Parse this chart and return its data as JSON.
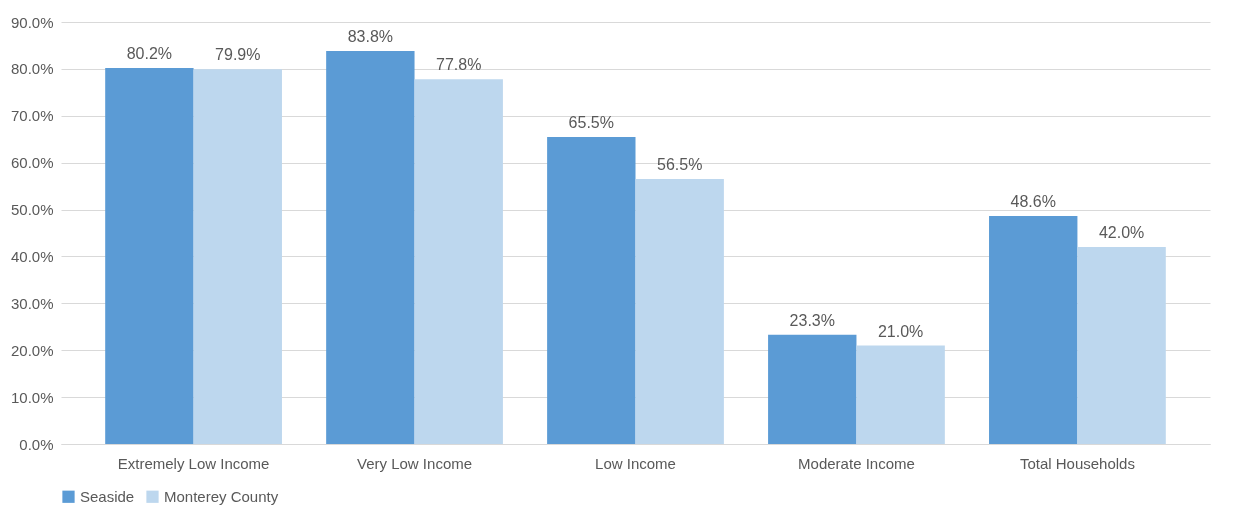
{
  "chart_data": {
    "type": "bar",
    "categories": [
      "Extremely Low Income",
      "Very Low Income",
      "Low Income",
      "Moderate Income",
      "Total Households"
    ],
    "series": [
      {
        "name": "Seaside",
        "color": "#5b9bd5",
        "values": [
          80.2,
          83.8,
          65.5,
          23.3,
          48.6
        ],
        "value_labels": [
          "80.2%",
          "83.8%",
          "65.5%",
          "23.3%",
          "48.6%"
        ]
      },
      {
        "name": "Monterey County",
        "color": "#bdd7ee",
        "values": [
          79.9,
          77.8,
          56.5,
          21.0,
          42.0
        ],
        "value_labels": [
          "79.9%",
          "77.8%",
          "56.5%",
          "21.0%",
          "42.0%"
        ]
      }
    ],
    "ylim": [
      0,
      90
    ],
    "yticks": [
      {
        "value": 0,
        "label": "0.0%"
      },
      {
        "value": 10,
        "label": "10.0%"
      },
      {
        "value": 20,
        "label": "20.0%"
      },
      {
        "value": 30,
        "label": "30.0%"
      },
      {
        "value": 40,
        "label": "40.0%"
      },
      {
        "value": 50,
        "label": "50.0%"
      },
      {
        "value": 60,
        "label": "60.0%"
      },
      {
        "value": 70,
        "label": "70.0%"
      },
      {
        "value": 80,
        "label": "80.0%"
      },
      {
        "value": 90,
        "label": "90.0%"
      }
    ],
    "grid": "y",
    "legend": "bottom"
  }
}
